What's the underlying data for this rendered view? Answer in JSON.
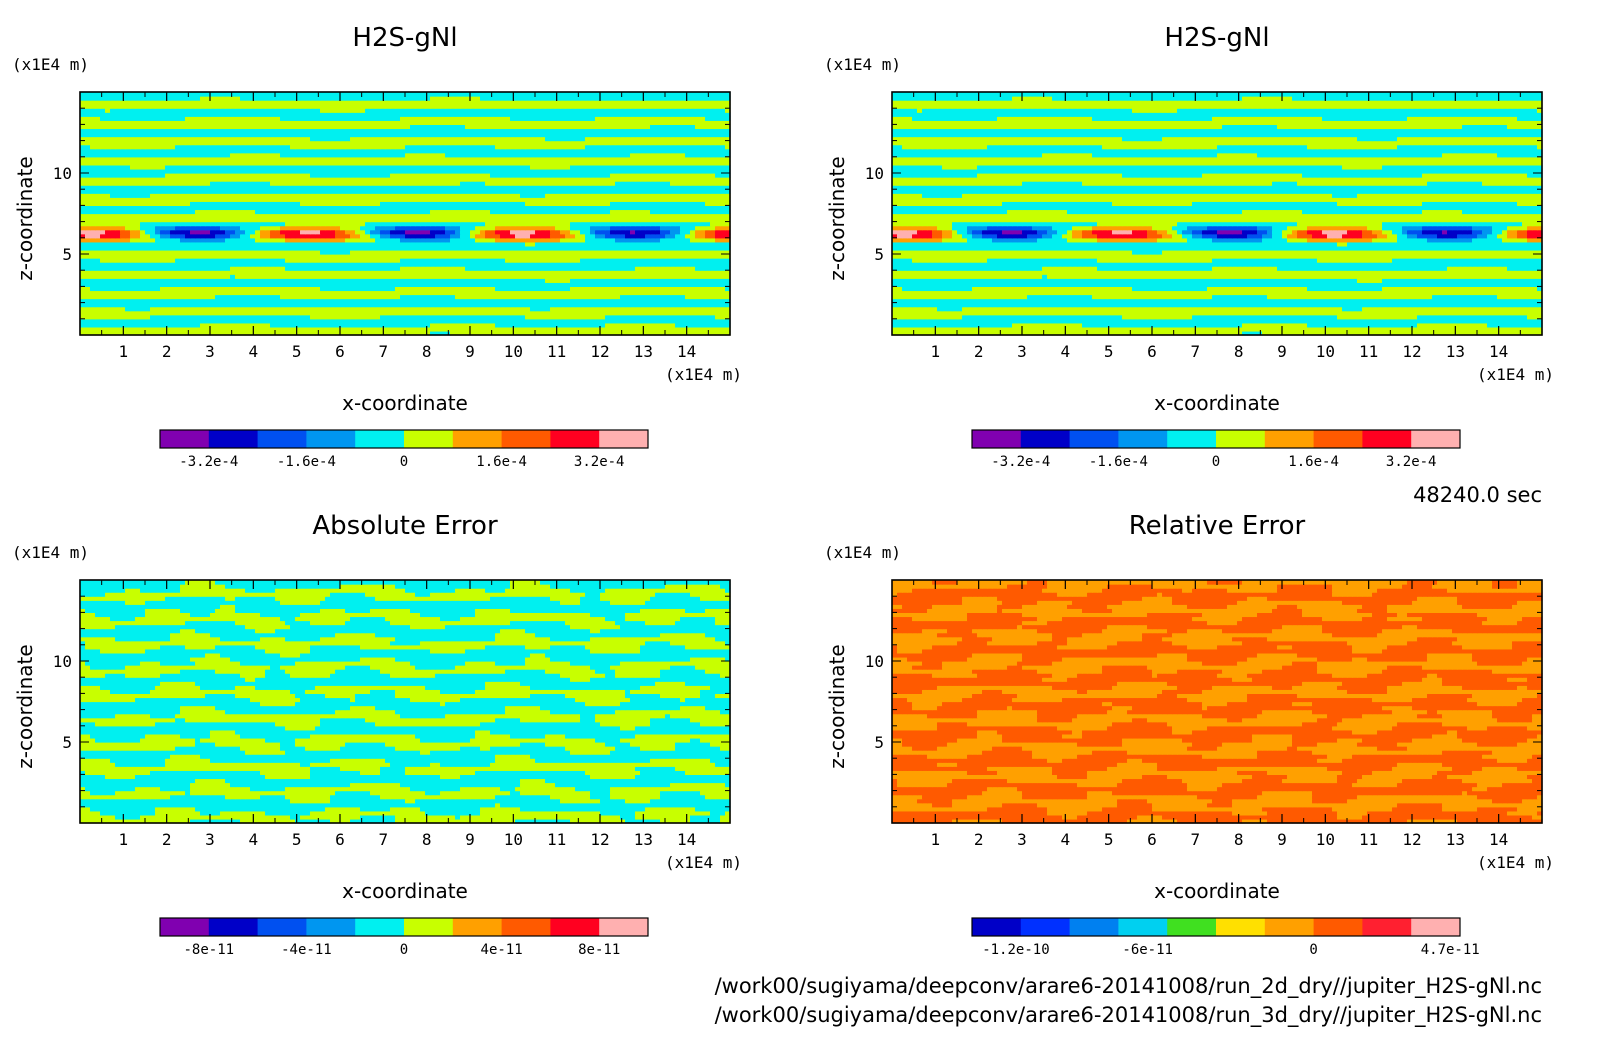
{
  "time_label": "48240.0 sec",
  "file_paths": [
    "/work00/sugiyama/deepconv/arare6-20141008/run_2d_dry//jupiter_H2S-gNl.nc",
    "/work00/sugiyama/deepconv/arare6-20141008/run_3d_dry//jupiter_H2S-gNl.nc"
  ],
  "chart_data": [
    {
      "type": "heatmap",
      "title": "H2S-gNl",
      "xlabel": "x-coordinate",
      "ylabel": "z-coordinate",
      "x_unit": "(x1E4 m)",
      "y_unit": "(x1E4 m)",
      "xlim": [
        0,
        15
      ],
      "ylim": [
        0,
        15
      ],
      "x_ticks": [
        "1",
        "2",
        "3",
        "4",
        "5",
        "6",
        "7",
        "8",
        "9",
        "10",
        "11",
        "12",
        "13",
        "14"
      ],
      "y_ticks": [
        "5",
        "10"
      ],
      "field_kind": "signal",
      "colorbar": {
        "colors": [
          "#8000b0",
          "#0000c8",
          "#0050f0",
          "#0096f0",
          "#00f0f0",
          "#c8ff00",
          "#ffa000",
          "#ff5a00",
          "#ff0020",
          "#ffb0b0"
        ],
        "tick_labels": [
          "-3.2e-4",
          "-1.6e-4",
          "0",
          "1.6e-4",
          "3.2e-4"
        ]
      }
    },
    {
      "type": "heatmap",
      "title": "H2S-gNl",
      "xlabel": "x-coordinate",
      "ylabel": "z-coordinate",
      "x_unit": "(x1E4 m)",
      "y_unit": "(x1E4 m)",
      "xlim": [
        0,
        15
      ],
      "ylim": [
        0,
        15
      ],
      "x_ticks": [
        "1",
        "2",
        "3",
        "4",
        "5",
        "6",
        "7",
        "8",
        "9",
        "10",
        "11",
        "12",
        "13",
        "14"
      ],
      "y_ticks": [
        "5",
        "10"
      ],
      "field_kind": "signal",
      "colorbar": {
        "colors": [
          "#8000b0",
          "#0000c8",
          "#0050f0",
          "#0096f0",
          "#00f0f0",
          "#c8ff00",
          "#ffa000",
          "#ff5a00",
          "#ff0020",
          "#ffb0b0"
        ],
        "tick_labels": [
          "-3.2e-4",
          "-1.6e-4",
          "0",
          "1.6e-4",
          "3.2e-4"
        ]
      }
    },
    {
      "type": "heatmap",
      "title": "Absolute Error",
      "xlabel": "x-coordinate",
      "ylabel": "z-coordinate",
      "x_unit": "(x1E4 m)",
      "y_unit": "(x1E4 m)",
      "xlim": [
        0,
        15
      ],
      "ylim": [
        0,
        15
      ],
      "x_ticks": [
        "1",
        "2",
        "3",
        "4",
        "5",
        "6",
        "7",
        "8",
        "9",
        "10",
        "11",
        "12",
        "13",
        "14"
      ],
      "y_ticks": [
        "5",
        "10"
      ],
      "field_kind": "abs",
      "colorbar": {
        "colors": [
          "#8000b0",
          "#0000c8",
          "#0050f0",
          "#0096f0",
          "#00f0f0",
          "#c8ff00",
          "#ffa000",
          "#ff5a00",
          "#ff0020",
          "#ffb0b0"
        ],
        "tick_labels": [
          "-8e-11",
          "-4e-11",
          "0",
          "4e-11",
          "8e-11"
        ]
      }
    },
    {
      "type": "heatmap",
      "title": "Relative Error",
      "xlabel": "x-coordinate",
      "ylabel": "z-coordinate",
      "x_unit": "(x1E4 m)",
      "y_unit": "(x1E4 m)",
      "xlim": [
        0,
        15
      ],
      "ylim": [
        0,
        15
      ],
      "x_ticks": [
        "1",
        "2",
        "3",
        "4",
        "5",
        "6",
        "7",
        "8",
        "9",
        "10",
        "11",
        "12",
        "13",
        "14"
      ],
      "y_ticks": [
        "5",
        "10"
      ],
      "field_kind": "rel",
      "colorbar": {
        "colors": [
          "#0000c8",
          "#0030ff",
          "#0080f0",
          "#00d0f0",
          "#40e020",
          "#ffe000",
          "#ffa000",
          "#ff5a00",
          "#ff2030",
          "#ffb0b0"
        ],
        "tick_labels": [
          "-1.2e-10",
          "-6e-11",
          "0",
          "4.7e-11"
        ]
      }
    }
  ]
}
